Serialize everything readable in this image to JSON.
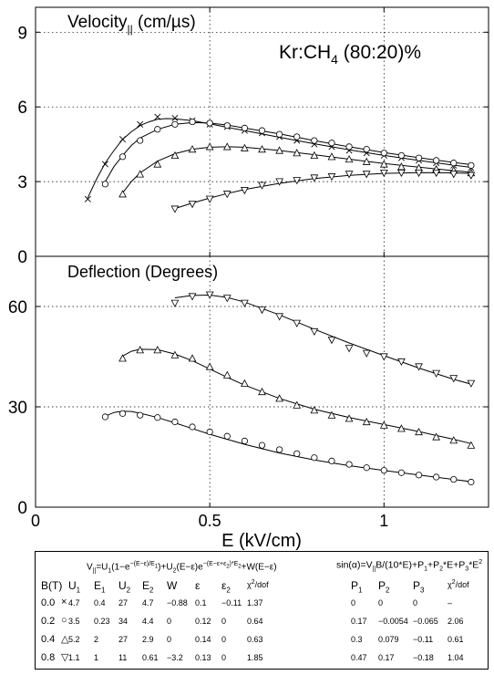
{
  "chart_data": [
    {
      "type": "scatter",
      "panel": "top",
      "title": "Velocity|| (cm/µs)",
      "title_parts": {
        "main": "Velocity",
        "sub": "||",
        "unit": " (cm/µs)"
      },
      "annotation": {
        "pre": "Kr:CH",
        "sub": "4",
        "post": " (80:20)%"
      },
      "xlim": [
        0,
        1.3
      ],
      "ylim": [
        0,
        10
      ],
      "yticks": [
        0,
        3,
        6,
        9
      ],
      "grid": true,
      "series": [
        {
          "marker": "x",
          "x": [
            0.15,
            0.2,
            0.25,
            0.3,
            0.35,
            0.4,
            0.45,
            0.5,
            0.55,
            0.6,
            0.65,
            0.7,
            0.75,
            0.8,
            0.85,
            0.9,
            0.95,
            1.0,
            1.05,
            1.1,
            1.15,
            1.2,
            1.25
          ],
          "values": [
            2.3,
            3.7,
            4.7,
            5.3,
            5.6,
            5.55,
            5.45,
            5.3,
            5.2,
            5.05,
            4.95,
            4.8,
            4.65,
            4.5,
            4.4,
            4.25,
            4.15,
            4.05,
            3.95,
            3.85,
            3.75,
            3.65,
            3.55
          ],
          "fit_x": [
            0.15,
            0.175,
            0.2,
            0.225,
            0.25,
            0.275,
            0.3,
            0.325,
            0.35,
            0.375,
            0.4,
            0.45,
            0.5,
            0.55,
            0.6,
            0.7,
            0.8,
            0.9,
            1.0,
            1.1,
            1.2,
            1.25
          ],
          "fit_y": [
            2.35,
            3.1,
            3.75,
            4.25,
            4.7,
            5.0,
            5.25,
            5.4,
            5.5,
            5.53,
            5.52,
            5.45,
            5.32,
            5.18,
            5.05,
            4.78,
            4.52,
            4.28,
            4.05,
            3.85,
            3.66,
            3.57
          ]
        },
        {
          "marker": "o",
          "x": [
            0.2,
            0.25,
            0.3,
            0.35,
            0.4,
            0.45,
            0.5,
            0.55,
            0.6,
            0.65,
            0.7,
            0.75,
            0.8,
            0.85,
            0.9,
            0.95,
            1.0,
            1.05,
            1.1,
            1.15,
            1.2,
            1.25
          ],
          "values": [
            2.9,
            4.0,
            4.65,
            5.1,
            5.3,
            5.4,
            5.35,
            5.25,
            5.15,
            5.05,
            4.9,
            4.8,
            4.65,
            4.55,
            4.4,
            4.3,
            4.15,
            4.05,
            3.95,
            3.85,
            3.75,
            3.65
          ],
          "fit_x": [
            0.2,
            0.225,
            0.25,
            0.275,
            0.3,
            0.35,
            0.4,
            0.45,
            0.5,
            0.55,
            0.6,
            0.7,
            0.8,
            0.9,
            1.0,
            1.1,
            1.2,
            1.25
          ],
          "fit_y": [
            3.0,
            3.6,
            4.05,
            4.45,
            4.75,
            5.1,
            5.3,
            5.37,
            5.35,
            5.27,
            5.15,
            4.92,
            4.65,
            4.4,
            4.17,
            3.96,
            3.77,
            3.68
          ]
        },
        {
          "marker": "^",
          "x": [
            0.25,
            0.3,
            0.35,
            0.4,
            0.45,
            0.5,
            0.55,
            0.6,
            0.65,
            0.7,
            0.75,
            0.8,
            0.85,
            0.9,
            0.95,
            1.0,
            1.05,
            1.1,
            1.15,
            1.2,
            1.25
          ],
          "values": [
            2.5,
            3.3,
            3.7,
            4.05,
            4.3,
            4.4,
            4.4,
            4.35,
            4.3,
            4.25,
            4.15,
            4.05,
            4.0,
            3.9,
            3.8,
            3.7,
            3.6,
            3.55,
            3.5,
            3.45,
            3.35
          ],
          "fit_x": [
            0.25,
            0.275,
            0.3,
            0.35,
            0.4,
            0.45,
            0.5,
            0.55,
            0.6,
            0.7,
            0.8,
            0.9,
            1.0,
            1.1,
            1.2,
            1.25
          ],
          "fit_y": [
            2.55,
            3.0,
            3.35,
            3.82,
            4.12,
            4.3,
            4.38,
            4.4,
            4.38,
            4.25,
            4.08,
            3.9,
            3.73,
            3.58,
            3.44,
            3.38
          ]
        },
        {
          "marker": "v",
          "x": [
            0.4,
            0.45,
            0.5,
            0.55,
            0.6,
            0.65,
            0.7,
            0.75,
            0.8,
            0.85,
            0.9,
            0.95,
            1.0,
            1.05,
            1.1,
            1.15,
            1.2,
            1.25
          ],
          "values": [
            1.9,
            2.1,
            2.3,
            2.5,
            2.65,
            2.85,
            3.0,
            3.05,
            3.15,
            3.2,
            3.3,
            3.3,
            3.35,
            3.35,
            3.35,
            3.35,
            3.3,
            3.25
          ],
          "fit_x": [
            0.4,
            0.45,
            0.5,
            0.55,
            0.6,
            0.7,
            0.8,
            0.9,
            1.0,
            1.1,
            1.2,
            1.25
          ],
          "fit_y": [
            1.92,
            2.14,
            2.34,
            2.52,
            2.68,
            2.93,
            3.12,
            3.25,
            3.33,
            3.36,
            3.35,
            3.33
          ]
        }
      ]
    },
    {
      "type": "scatter",
      "panel": "bottom",
      "title": "Deflection (Degrees)",
      "xlabel": "E (kV/cm)",
      "xlim": [
        0,
        1.3
      ],
      "ylim": [
        0,
        75
      ],
      "xticks": [
        0,
        0.5,
        1
      ],
      "xtick_labels": [
        "0",
        "0.5",
        "1"
      ],
      "yticks": [
        0,
        30,
        60
      ],
      "grid": true,
      "series": [
        {
          "marker": "o",
          "x": [
            0.2,
            0.25,
            0.3,
            0.35,
            0.4,
            0.45,
            0.5,
            0.55,
            0.6,
            0.65,
            0.7,
            0.75,
            0.8,
            0.85,
            0.9,
            0.95,
            1.0,
            1.05,
            1.1,
            1.15,
            1.2,
            1.25
          ],
          "values": [
            27,
            28,
            27.5,
            26.8,
            25.5,
            24,
            22.5,
            21.2,
            19.8,
            18.5,
            17.2,
            16,
            14.8,
            13.8,
            12.8,
            11.8,
            11,
            10.3,
            9.6,
            9,
            8.3,
            7.5
          ],
          "fit_x": [
            0.2,
            0.225,
            0.25,
            0.275,
            0.3,
            0.35,
            0.4,
            0.45,
            0.5,
            0.55,
            0.6,
            0.7,
            0.8,
            0.9,
            1.0,
            1.1,
            1.2,
            1.25
          ],
          "fit_y": [
            27.2,
            28.3,
            28.7,
            28.6,
            28.1,
            26.8,
            25.2,
            23.5,
            21.8,
            20.3,
            18.8,
            16.2,
            14.1,
            12.4,
            11.0,
            9.6,
            8.3,
            7.6
          ]
        },
        {
          "marker": "^",
          "x": [
            0.25,
            0.3,
            0.35,
            0.4,
            0.45,
            0.5,
            0.55,
            0.6,
            0.65,
            0.7,
            0.75,
            0.8,
            0.85,
            0.9,
            0.95,
            1.0,
            1.05,
            1.1,
            1.15,
            1.2,
            1.25
          ],
          "values": [
            44.5,
            47,
            47,
            45.5,
            44.5,
            42,
            39.5,
            37,
            34.5,
            32.5,
            30.5,
            29,
            27.5,
            26.5,
            25.5,
            24.5,
            23.5,
            22.5,
            21,
            20,
            18.5
          ],
          "fit_x": [
            0.25,
            0.275,
            0.3,
            0.35,
            0.4,
            0.45,
            0.5,
            0.55,
            0.6,
            0.7,
            0.8,
            0.9,
            1.0,
            1.1,
            1.2,
            1.25
          ],
          "fit_y": [
            45.2,
            46.6,
            47.2,
            47.1,
            45.8,
            43.8,
            41.3,
            38.8,
            36.5,
            32.5,
            29.3,
            26.8,
            24.7,
            22.6,
            20.3,
            19.0
          ]
        },
        {
          "marker": "v",
          "x": [
            0.4,
            0.45,
            0.5,
            0.55,
            0.6,
            0.65,
            0.7,
            0.75,
            0.8,
            0.85,
            0.9,
            0.95,
            1.0,
            1.05,
            1.1,
            1.15,
            1.2,
            1.25
          ],
          "values": [
            61,
            63,
            63.5,
            62.5,
            61,
            59,
            57,
            55,
            52.5,
            50,
            47.5,
            46,
            45,
            43.5,
            42,
            40,
            38.5,
            37
          ],
          "fit_x": [
            0.4,
            0.45,
            0.5,
            0.55,
            0.6,
            0.7,
            0.8,
            0.9,
            1.0,
            1.1,
            1.2,
            1.25
          ],
          "fit_y": [
            62.6,
            63.3,
            63.4,
            62.7,
            61.3,
            57.5,
            53.2,
            49.1,
            45.3,
            41.6,
            38.2,
            36.8
          ]
        }
      ]
    },
    {
      "type": "table",
      "formula_left": {
        "a": "V",
        "b": "||",
        "c": "=U",
        "d": "1",
        "e": "(1−e",
        "f": "−(E−ε)/E",
        "g": "1",
        "h": ")+U",
        "i": "2",
        "j": "(E−ε)e",
        "k": "−(E−ε+ε",
        "l": "2",
        "m": ")*E",
        "n": "2",
        "o": "+W(E−ε)"
      },
      "formula_right": {
        "a": "sin(α)=V",
        "b": "||",
        "c": "B/(10*E)+P",
        "d": "1",
        "e": "+P",
        "f": "2",
        "g": "*E+P",
        "h": "3",
        "i": "*E",
        "j": "2"
      },
      "columns_left": [
        {
          "main": "B(T)",
          "sub": ""
        },
        {
          "main": "U",
          "sub": "1"
        },
        {
          "main": "E",
          "sub": "1"
        },
        {
          "main": "U",
          "sub": "2"
        },
        {
          "main": "E",
          "sub": "2"
        },
        {
          "main": "W",
          "sub": ""
        },
        {
          "main": "ε",
          "sub": ""
        },
        {
          "main": "ε",
          "sub": "2"
        },
        {
          "main": "χ",
          "sup": "2",
          "post": "/dof"
        }
      ],
      "columns_right": [
        {
          "main": "P",
          "sub": "1"
        },
        {
          "main": "P",
          "sub": "2"
        },
        {
          "main": "P",
          "sub": "3"
        },
        {
          "main": "χ",
          "sup": "2",
          "post": "/dof"
        }
      ],
      "rows": [
        {
          "b": "0.0",
          "marker": "×",
          "marker_kind": "x",
          "vals": [
            "4.7",
            "0.4",
            "27",
            "4.7",
            "−0.88",
            "0.1",
            "−0.11",
            "1.37"
          ],
          "pvals": [
            "0",
            "0",
            "0",
            "–"
          ]
        },
        {
          "b": "0.2",
          "marker": "○",
          "marker_kind": "o",
          "vals": [
            "3.5",
            "0.23",
            "34",
            "4.4",
            "0",
            "0.12",
            "0",
            "0.64"
          ],
          "pvals": [
            "0.17",
            "−0.0054",
            "−0.065",
            "2.06"
          ]
        },
        {
          "b": "0.4",
          "marker": "△",
          "marker_kind": "^",
          "vals": [
            "5.2",
            "2",
            "27",
            "2.9",
            "0",
            "0.14",
            "0",
            "0.63"
          ],
          "pvals": [
            "0.3",
            "0.079",
            "−0.11",
            "0.61"
          ]
        },
        {
          "b": "0.8",
          "marker": "▽",
          "marker_kind": "v",
          "vals": [
            "1.1",
            "1",
            "11",
            "0.61",
            "−3.2",
            "0.13",
            "0",
            "1.85"
          ],
          "pvals": [
            "0.47",
            "0.17",
            "−0.18",
            "1.04"
          ]
        }
      ]
    }
  ]
}
